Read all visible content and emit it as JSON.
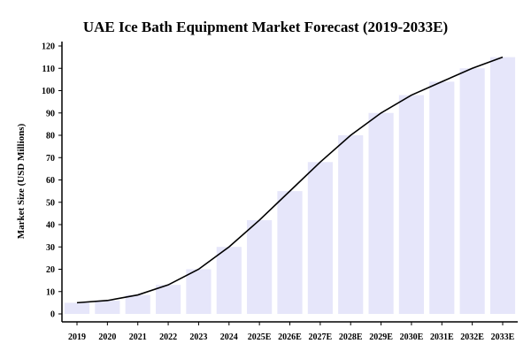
{
  "chart_data": {
    "type": "bar",
    "title": "UAE Ice Bath Equipment Market Forecast (2019-2033E)",
    "xlabel": "",
    "ylabel": "Market Size (USD Millions)",
    "ylim": [
      0,
      120
    ],
    "yticks": [
      0,
      10,
      20,
      30,
      40,
      50,
      60,
      70,
      80,
      90,
      100,
      110,
      120
    ],
    "grid": false,
    "categories": [
      "2019",
      "2020",
      "2021",
      "2022",
      "2023",
      "2024",
      "2025E",
      "2026E",
      "2027E",
      "2028E",
      "2029E",
      "2030E",
      "2031E",
      "2032E",
      "2033E"
    ],
    "values": [
      5,
      6,
      8.5,
      13,
      20,
      30,
      42,
      55,
      68,
      80,
      90,
      98,
      104,
      110,
      115
    ],
    "overlay_line": true,
    "colors": {
      "bar": "#e6e6fa",
      "line": "#000000"
    }
  }
}
